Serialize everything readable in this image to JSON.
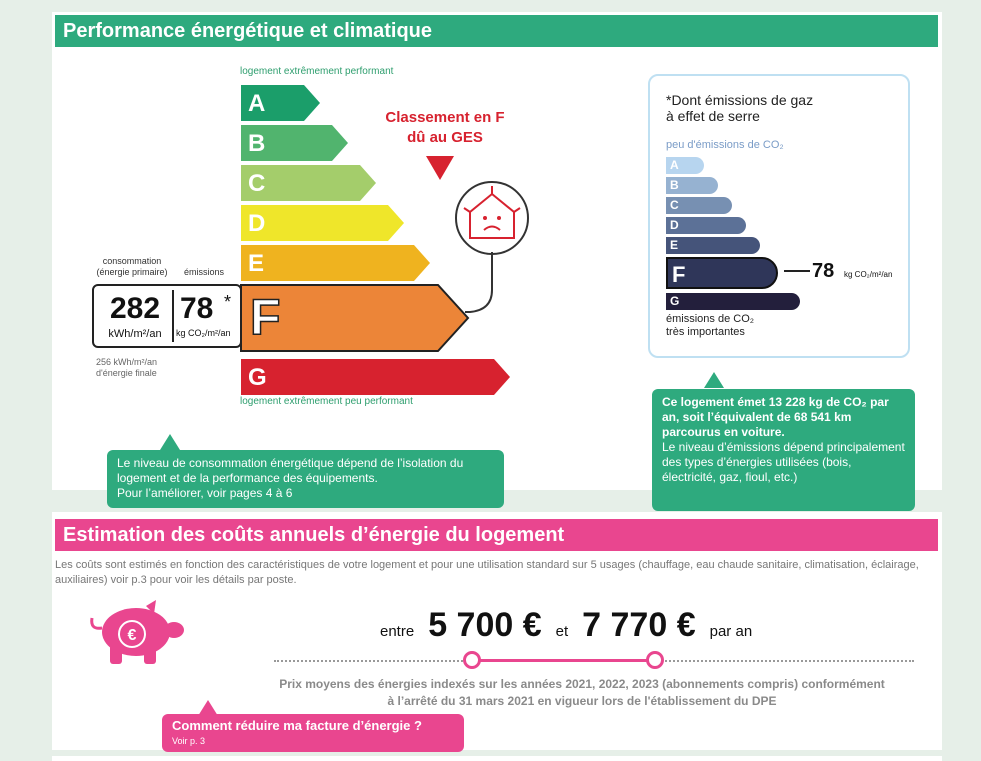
{
  "sections": {
    "energy_title": "Performance énergétique et climatique",
    "cost_title": "Estimation des coûts annuels d’énergie du logement"
  },
  "energy_scale": {
    "top_label": "logement extrêmement performant",
    "bottom_label": "logement extrêmement peu performant",
    "classes": [
      {
        "letter": "A",
        "color": "#1b9e6a"
      },
      {
        "letter": "B",
        "color": "#51b46e"
      },
      {
        "letter": "C",
        "color": "#a4cd6b"
      },
      {
        "letter": "D",
        "color": "#efe62a"
      },
      {
        "letter": "E",
        "color": "#efb31f"
      },
      {
        "letter": "F",
        "color": "#ec8538"
      },
      {
        "letter": "G",
        "color": "#d7222f"
      }
    ],
    "current_class": "F",
    "alert_line1": "Classement en F",
    "alert_line2": "dû au GES"
  },
  "consumption": {
    "label_line1": "consommation",
    "label_line2": "(énergie primaire)",
    "emissions_label": "émissions",
    "value": "282",
    "unit": "kWh/m²/an",
    "emissions_value": "78",
    "emissions_star": "*",
    "emissions_unit": "kg CO₂/m²/an",
    "final_line1": "256 kWh/m²/an",
    "final_line2": "d'énergie finale"
  },
  "ges": {
    "note_line1": "*Dont émissions de gaz",
    "note_line2": "à effet de serre",
    "top_label": "peu d'émissions de CO₂",
    "bottom_label_line1": "émissions de CO₂",
    "bottom_label_line2": "très importantes",
    "classes": [
      {
        "letter": "A",
        "color": "#b7d5ef"
      },
      {
        "letter": "B",
        "color": "#96b2d1"
      },
      {
        "letter": "C",
        "color": "#7790b2"
      },
      {
        "letter": "D",
        "color": "#5c7197"
      },
      {
        "letter": "E",
        "color": "#45547a"
      },
      {
        "letter": "F",
        "color": "#2f3659"
      },
      {
        "letter": "G",
        "color": "#231f3c"
      }
    ],
    "value": "78",
    "unit": "kg CO₂/m²/an"
  },
  "bubbles": {
    "consumption_text": "Le niveau de consommation énergétique dépend de l’isolation du logement et de la performance des équipements.",
    "consumption_text2": "Pour l’améliorer, voir pages 4 à 6",
    "ges_bold": "Ce logement émet 13 228 kg de CO₂ par an, soit l’équivalent de 68 541 km parcourus en voiture.",
    "ges_text": "Le niveau d’émissions dépend principalement des types d’énergies utilisées (bois, électricité, gaz, fioul, etc.)"
  },
  "costs": {
    "intro": "Les coûts sont estimés en fonction des caractéristiques de votre logement et pour une utilisation standard sur 5 usages (chauffage, eau chaude sanitaire, climatisation, éclairage, auxiliaires) voir p.3 pour voir les détails par poste.",
    "entre": "entre",
    "min": "5 700 €",
    "et": "et",
    "max": "7 770 €",
    "par_an": "par an",
    "note_line1": "Prix moyens des énergies indexés sur les années 2021, 2022, 2023 (abonnements compris) conformément",
    "note_line2": "à l’arrêté du 31 mars 2021 en vigueur lors de l'établissement du DPE",
    "tip_title": "Comment réduire ma facture d’énergie ?",
    "tip_sub": "Voir p. 3",
    "piggy_symbol": "€"
  },
  "icons": {
    "piggy": "piggy-bank-icon",
    "house": "cold-house-icon"
  }
}
